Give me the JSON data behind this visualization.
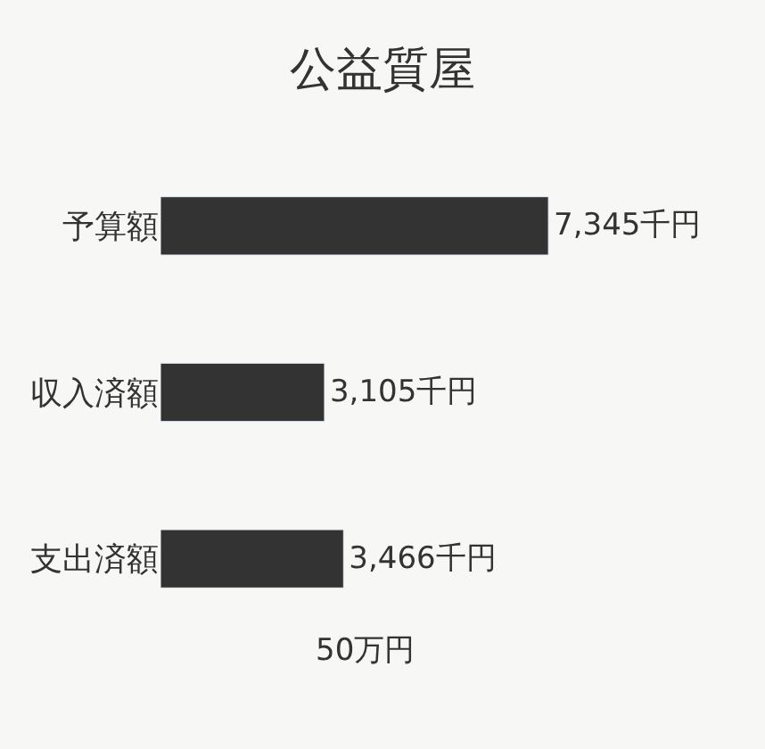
{
  "chart_data": {
    "type": "bar",
    "orientation": "horizontal",
    "title": "公益質屋",
    "categories": [
      "予算額",
      "収入済額",
      "支出済額"
    ],
    "values": [
      7345,
      3105,
      3466
    ],
    "color": "#333333",
    "value_labels": [
      "7,345千円",
      "3,105千円",
      "3,466千円"
    ],
    "tick_labels": "y",
    "grid": false,
    "legend": false,
    "annotations": [
      "50万円"
    ]
  }
}
